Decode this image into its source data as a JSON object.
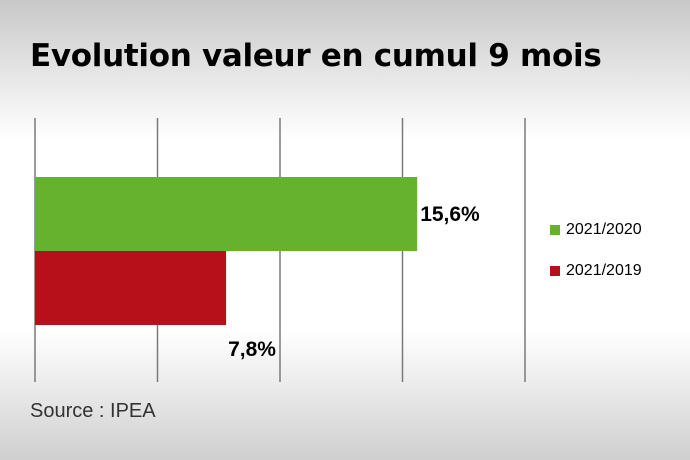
{
  "title": "Evolution valeur en cumul 9 mois",
  "source": "Source : IPEA",
  "chart_data": {
    "type": "bar",
    "orientation": "horizontal",
    "title": "Evolution valeur en cumul 9 mois",
    "xlim": [
      0,
      20
    ],
    "grid": true,
    "legend_position": "right",
    "series": [
      {
        "name": "2021/2020",
        "value": 15.6,
        "label": "15,6%",
        "color": "#66b22e"
      },
      {
        "name": "2021/2019",
        "value": 7.8,
        "label": "7,8%",
        "color": "#b8101a"
      }
    ]
  }
}
